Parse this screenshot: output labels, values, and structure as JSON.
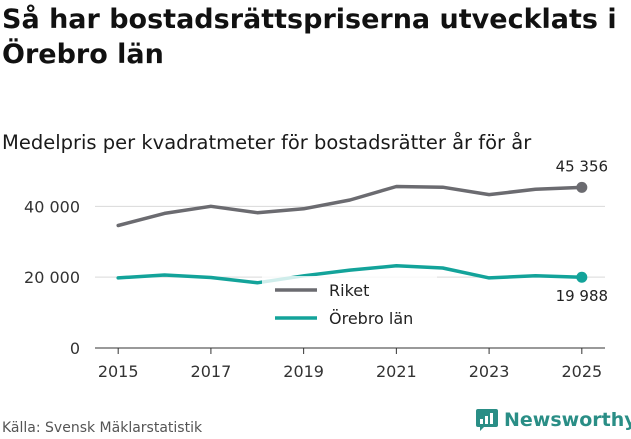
{
  "title": "Så har bostadsrättspriserna utvecklats i Örebro län",
  "subtitle": "Medelpris per kvadratmeter för bostadsrätter år för år",
  "source": "Källa: Svensk Mäklarstatistik",
  "brand": "Newsworthy",
  "chart_data": {
    "type": "line",
    "x": [
      2015,
      2016,
      2017,
      2018,
      2019,
      2020,
      2021,
      2022,
      2023,
      2024,
      2025
    ],
    "x_ticks": [
      2015,
      2017,
      2019,
      2021,
      2023,
      2025
    ],
    "x_tick_labels": [
      "2015",
      "2017",
      "2019",
      "2021",
      "2023",
      "2025"
    ],
    "y_ticks": [
      0,
      20000,
      40000
    ],
    "y_tick_labels": [
      "0",
      "20 000",
      "40 000"
    ],
    "ylim": [
      0,
      48000
    ],
    "series": [
      {
        "name": "Riket",
        "color": "#6b6b70",
        "values": [
          34600,
          38000,
          40000,
          38200,
          39300,
          41800,
          45600,
          45400,
          43300,
          44800,
          45356
        ]
      },
      {
        "name": "Örebro län",
        "color": "#13a39a",
        "values": [
          19800,
          20600,
          19900,
          18400,
          20400,
          22000,
          23200,
          22600,
          19800,
          20400,
          19988
        ]
      }
    ],
    "end_labels": [
      "45 356",
      "19 988"
    ],
    "legend": "center",
    "xlabel": "",
    "ylabel": ""
  }
}
